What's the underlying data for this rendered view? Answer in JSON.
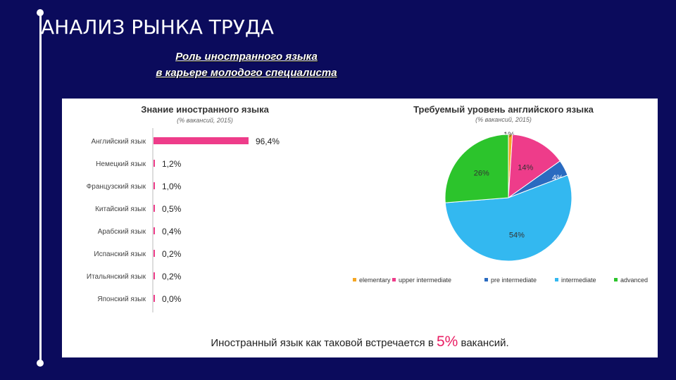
{
  "slide": {
    "title": "АНАЛИЗ РЫНКА ТРУДА",
    "subtitle_line1": "Роль иностранного языка",
    "subtitle_line2": "в карьере молодого специалиста"
  },
  "footer": {
    "prefix": "Иностранный язык как таковой встречается в",
    "highlight": "5%",
    "suffix": "вакансий."
  },
  "colors": {
    "background": "#0b0b5c",
    "bar_pink": "#ee3c8a",
    "elementary": "#f5a623",
    "upper_intermediate": "#ee3c8a",
    "pre_intermediate": "#2a6bc0",
    "intermediate": "#33b8f0",
    "advanced": "#2cc42c"
  },
  "chart_data": [
    {
      "type": "bar",
      "orientation": "horizontal",
      "title": "Знание иностранного языка",
      "subtitle": "(% вакансий, 2015)",
      "categories": [
        "Английский язык",
        "Немецкий язык",
        "Французский язык",
        "Китайский язык",
        "Арабский язык",
        "Испанский язык",
        "Итальянский язык",
        "Японский язык"
      ],
      "values": [
        96.4,
        1.2,
        1.0,
        0.5,
        0.4,
        0.2,
        0.2,
        0.0
      ],
      "value_labels": [
        "96,4%",
        "1,2%",
        "1,0%",
        "0,5%",
        "0,4%",
        "0,2%",
        "0,2%",
        "0,0%"
      ],
      "xlim": [
        0,
        100
      ]
    },
    {
      "type": "pie",
      "title": "Требуемый уровень английского языка",
      "subtitle": "(% вакансий, 2015)",
      "labels": [
        "elementary",
        "upper intermediate",
        "pre intermediate",
        "intermediate",
        "advanced"
      ],
      "values": [
        1,
        14,
        4,
        54,
        26
      ],
      "value_labels": [
        "1%",
        "14%",
        "4%",
        "54%",
        "26%"
      ],
      "legend_position": "bottom"
    }
  ]
}
